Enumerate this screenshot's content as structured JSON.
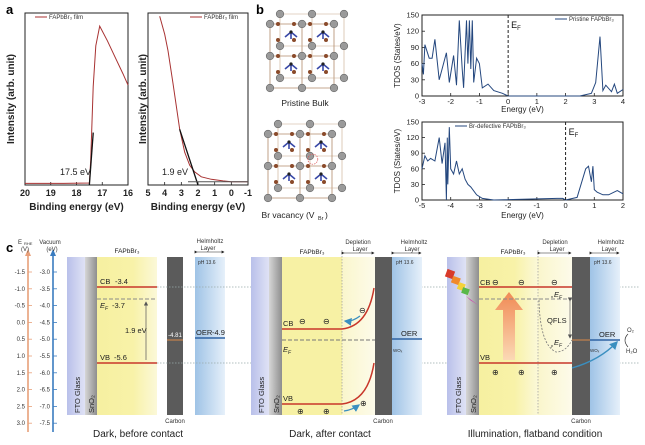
{
  "panel_labels": {
    "a": "a",
    "b": "b",
    "c": "c"
  },
  "chart_data": [
    {
      "type": "line",
      "panel": "a-left",
      "legend": "FAPbBr₃ film",
      "legend_placement": "top-left",
      "xlabel": "Binding energy (eV)",
      "ylabel": "Intensity (arb. unit)",
      "xlim": [
        20,
        16
      ],
      "ylim": [
        0,
        1.05
      ],
      "xticks": [
        20,
        19,
        18,
        17,
        16
      ],
      "yticks": [],
      "annotation": "17.5 eV",
      "color": "#a83232",
      "series": [
        {
          "name": "FAPbBr₃ film",
          "x": [
            20,
            18.5,
            17.5,
            17.45,
            17.35,
            17.25,
            17.1,
            16.8,
            16.5,
            16.2,
            16.0
          ],
          "y": [
            0.01,
            0.01,
            0.012,
            0.15,
            0.6,
            0.85,
            0.97,
            0.88,
            0.78,
            0.68,
            0.61
          ]
        }
      ],
      "tangent": {
        "x": [
          17.5,
          17.35
        ],
        "y": [
          0.0,
          0.32
        ]
      }
    },
    {
      "type": "line",
      "panel": "a-right",
      "legend": "FAPbBr₃ film",
      "legend_placement": "top-right",
      "xlabel": "Binding energy (eV)",
      "ylabel": "Intensity (arb. unit)",
      "xlim": [
        5,
        -1
      ],
      "ylim": [
        0,
        1.05
      ],
      "xticks": [
        5,
        4,
        3,
        2,
        1,
        0,
        -1
      ],
      "yticks": [],
      "annotation": "1.9 eV",
      "color": "#a83232",
      "series": [
        {
          "name": "FAPbBr₃ film",
          "x": [
            4.3,
            4.0,
            3.8,
            3.5,
            3.1,
            2.8,
            2.5,
            2.2,
            1.8,
            1.2,
            0.5,
            0,
            -1
          ],
          "y": [
            1.03,
            0.92,
            0.82,
            0.62,
            0.34,
            0.2,
            0.12,
            0.08,
            0.05,
            0.035,
            0.025,
            0.02,
            0.02
          ]
        }
      ],
      "tangent": {
        "x": [
          3.1,
          2.0
        ],
        "y": [
          0.34,
          0.0
        ]
      }
    },
    {
      "type": "line",
      "panel": "b-top",
      "legend": "Pristine FAPbBr₃",
      "legend_placement": "top-right",
      "xlabel": "Energy (eV)",
      "ylabel": "TDOS (States/eV)",
      "xlim": [
        -3,
        4
      ],
      "ylim": [
        0,
        150
      ],
      "xticks": [
        -3,
        -2,
        -1,
        0,
        1,
        2,
        3,
        4
      ],
      "yticks": [
        0,
        30,
        60,
        90,
        120,
        150
      ],
      "fermi_level": 0,
      "fermi_label": "E",
      "fermi_sub": "F",
      "color": "#24477e",
      "series": [
        {
          "name": "Pristine FAPbBr₃",
          "x": [
            -3,
            -2.95,
            -2.9,
            -2.75,
            -2.65,
            -2.55,
            -2.4,
            -2.3,
            -2.15,
            -2.05,
            -1.9,
            -1.8,
            -1.7,
            -1.6,
            -1.55,
            -1.45,
            -1.4,
            -1.35,
            -1.3,
            -1.25,
            -1.2,
            -1.1,
            -1.0,
            -0.9,
            -0.7,
            -0.5,
            -0.2,
            0,
            2.5,
            2.9,
            3.05,
            3.2,
            3.3,
            3.4,
            3.6,
            3.7,
            3.8,
            4
          ],
          "y": [
            60,
            40,
            95,
            70,
            70,
            105,
            30,
            50,
            80,
            25,
            75,
            20,
            140,
            50,
            15,
            140,
            60,
            140,
            50,
            140,
            25,
            70,
            60,
            15,
            22,
            10,
            5,
            0,
            0,
            5,
            25,
            110,
            10,
            20,
            8,
            22,
            5,
            12
          ]
        }
      ]
    },
    {
      "type": "line",
      "panel": "b-bottom",
      "legend": "Br-defective FAPbBr₃",
      "legend_placement": "top-left",
      "xlabel": "Energy (eV)",
      "ylabel": "TDOS (States/eV)",
      "xlim": [
        -5,
        2
      ],
      "ylim": [
        0,
        150
      ],
      "xticks": [
        -5,
        -4,
        -3,
        -2,
        -1,
        0,
        1,
        2
      ],
      "yticks": [
        0,
        30,
        60,
        90,
        120,
        150
      ],
      "fermi_level": 0,
      "fermi_label": "E",
      "fermi_sub": "F",
      "color": "#24477e",
      "series": [
        {
          "name": "Br-defective FAPbBr₃",
          "x": [
            -5,
            -4.9,
            -4.8,
            -4.7,
            -4.55,
            -4.4,
            -4.3,
            -4.2,
            -4.15,
            -4.12,
            -4.1,
            -4.05,
            -4.0,
            -3.9,
            -3.8,
            -3.7,
            -3.6,
            -3.5,
            -3.4,
            -3.3,
            -3.1,
            -2.9,
            -2.5,
            -0.3,
            -0.1,
            0,
            0.4,
            0.7,
            0.8,
            0.9,
            0.95,
            1.0,
            1.1,
            1.3,
            1.5,
            1.8,
            2
          ],
          "y": [
            60,
            85,
            75,
            80,
            75,
            120,
            70,
            110,
            0,
            120,
            30,
            140,
            60,
            50,
            75,
            50,
            60,
            40,
            30,
            25,
            10,
            3,
            0,
            3,
            3,
            0,
            5,
            60,
            65,
            35,
            65,
            20,
            15,
            10,
            10,
            18,
            12
          ]
        }
      ]
    }
  ],
  "panel_b": {
    "pristine_label": "Pristine Bulk",
    "vacancy_label": "Br vacancy (V",
    "vacancy_sub": "Br",
    "vacancy_tail": ")"
  },
  "panel_c": {
    "axes": {
      "rhe_title": "E",
      "rhe_sub": "RHE",
      "rhe_unit": "(V)",
      "vac_title": "Vacuum",
      "vac_unit": "(eV)",
      "rhe_ticks": [
        "-1.5",
        "-1.0",
        "-0.5",
        "0.0",
        "0.5",
        "1.0",
        "1.5",
        "2.0",
        "2.5",
        "3.0"
      ],
      "vac_ticks": [
        "-3.0",
        "-3.5",
        "-4.0",
        "-4.5",
        "-5.0",
        "-5.5",
        "-6.0",
        "-6.5",
        "-7.0",
        "-7.5"
      ]
    },
    "common": {
      "fto": "FTO Glass",
      "sno2": "SnO₂",
      "perovskite": "FAPbBr₃",
      "carbon": "Carbon",
      "helmholtz1": "Helmholtz",
      "helmholtz2": "Layer",
      "ph": "pH 13.6",
      "depletion1": "Depletion",
      "depletion2": "Layer",
      "cb": "CB",
      "vb": "VB",
      "ef": "E",
      "ef_sub": "F",
      "oer": "OER",
      "wox": "WOₓ",
      "electron": "⊖",
      "hole": "⊕"
    },
    "dark_before": {
      "caption": "Dark, before contact",
      "cb_value": "-3.4",
      "ef_value": "-3.7",
      "vb_value": "-5.6",
      "gap": "1.9 eV",
      "carbon_value": "-4.81",
      "oer_value": "-4.9"
    },
    "dark_after": {
      "caption": "Dark, after contact"
    },
    "illumination": {
      "caption": "Illumination, flatband condition",
      "qfls": "QFLS",
      "n_prefix": "n",
      "p_prefix": "p",
      "o2": "O₂",
      "h2o": "H₂O"
    },
    "colors": {
      "band": "#c8372a",
      "oer": "#2f63a3",
      "rhe_axis": "#e8a07a",
      "vac_axis": "#3a7cc0"
    }
  }
}
